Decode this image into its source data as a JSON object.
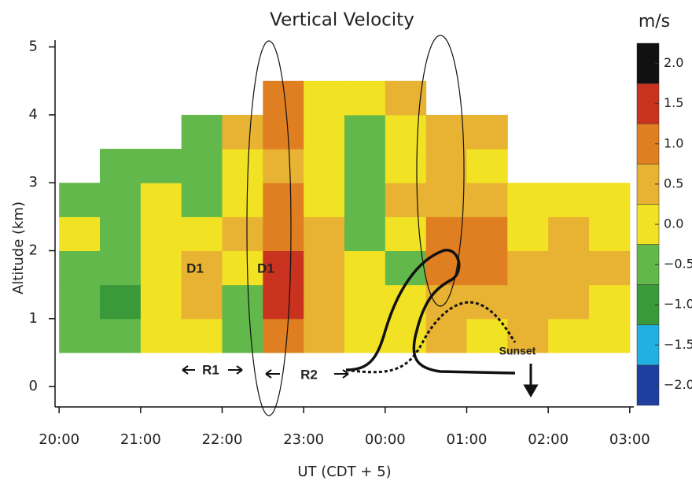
{
  "chart_data": {
    "type": "heatmap",
    "title": "Vertical Velocity",
    "xlabel": "UT (CDT + 5)",
    "ylabel": "Altitude (km)",
    "x": [
      20,
      20.5,
      21,
      21.5,
      22,
      22.5,
      23,
      23.5,
      24,
      24.5,
      25,
      25.5,
      26,
      26.5,
      27
    ],
    "y": [
      0,
      0.5,
      1,
      1.5,
      2,
      2.5,
      3,
      3.5,
      4,
      4.5,
      5
    ],
    "values": [
      [
        null,
        null,
        null,
        null,
        null,
        null,
        null,
        null,
        null,
        null,
        null,
        null,
        null,
        null
      ],
      [
        -0.3,
        -0.6,
        -0.2,
        0.1,
        -0.4,
        1.2,
        0.3,
        0.1,
        -0.2,
        0.4,
        0.2,
        0.3,
        0.2,
        0.1
      ],
      [
        -0.5,
        -0.8,
        0.2,
        0.3,
        -0.6,
        1.6,
        0.6,
        -0.2,
        0.1,
        0.7,
        0.6,
        0.4,
        0.3,
        0.2
      ],
      [
        -0.4,
        -0.3,
        -0.2,
        0.5,
        -0.2,
        1.4,
        0.4,
        0.1,
        -0.3,
        0.9,
        0.8,
        0.6,
        0.4,
        0.3
      ],
      [
        -0.2,
        -0.5,
        0.1,
        0.2,
        0.4,
        1.1,
        0.3,
        -0.4,
        0.2,
        1.1,
        0.8,
        0.2,
        0.3,
        0.1
      ],
      [
        -0.3,
        -0.7,
        -0.1,
        -0.3,
        0.2,
        0.9,
        0.2,
        -0.5,
        0.3,
        0.6,
        0.3,
        0.1,
        0.2,
        0.1
      ],
      [
        null,
        -0.6,
        -0.4,
        -0.5,
        0.1,
        0.7,
        -0.2,
        -0.6,
        -0.1,
        0.3,
        0.2,
        null,
        null,
        null
      ],
      [
        null,
        null,
        null,
        -0.7,
        0.3,
        0.8,
        0.2,
        -0.3,
        0.1,
        0.6,
        0.4,
        null,
        null,
        null
      ],
      [
        null,
        null,
        null,
        null,
        null,
        0.9,
        0.1,
        -0.2,
        0.3,
        null,
        null,
        null,
        null,
        null
      ],
      [
        null,
        null,
        null,
        null,
        null,
        null,
        null,
        null,
        null,
        null,
        null,
        null,
        null,
        null
      ]
    ],
    "xlim": [
      19.95,
      27.05
    ],
    "ylim": [
      -0.3,
      5.1
    ],
    "xticks": [
      {
        "value": 20,
        "label": "20:00"
      },
      {
        "value": 21,
        "label": "21:00"
      },
      {
        "value": 22,
        "label": "22:00"
      },
      {
        "value": 23,
        "label": "23:00"
      },
      {
        "value": 24,
        "label": "00:00"
      },
      {
        "value": 25,
        "label": "01:00"
      },
      {
        "value": 26,
        "label": "02:00"
      },
      {
        "value": 27,
        "label": "03:00"
      }
    ],
    "yticks": [
      0,
      1,
      2,
      3,
      4,
      5
    ],
    "grid": false,
    "colorbar": {
      "label": "m/s",
      "clim": [
        -2.25,
        2.25
      ],
      "colors": [
        "#1f3f9f",
        "#22b0e0",
        "#3a9a3a",
        "#62b84a",
        "#f2e224",
        "#e8b232",
        "#e07e22",
        "#c8321e",
        "#111111"
      ],
      "ticks": [
        {
          "value": -2,
          "label": "−2.0"
        },
        {
          "value": -1.5,
          "label": "−1.5"
        },
        {
          "value": -1,
          "label": "−1.0"
        },
        {
          "value": -0.5,
          "label": "−0.5"
        },
        {
          "value": 0,
          "label": "0.0"
        },
        {
          "value": 0.5,
          "label": "0.5"
        },
        {
          "value": 1,
          "label": "1.0"
        },
        {
          "value": 1.5,
          "label": "1.5"
        },
        {
          "value": 2,
          "label": "2.0"
        }
      ]
    },
    "annotations": [
      "D1",
      "D1",
      "R1",
      "R2",
      "Sunset"
    ]
  }
}
